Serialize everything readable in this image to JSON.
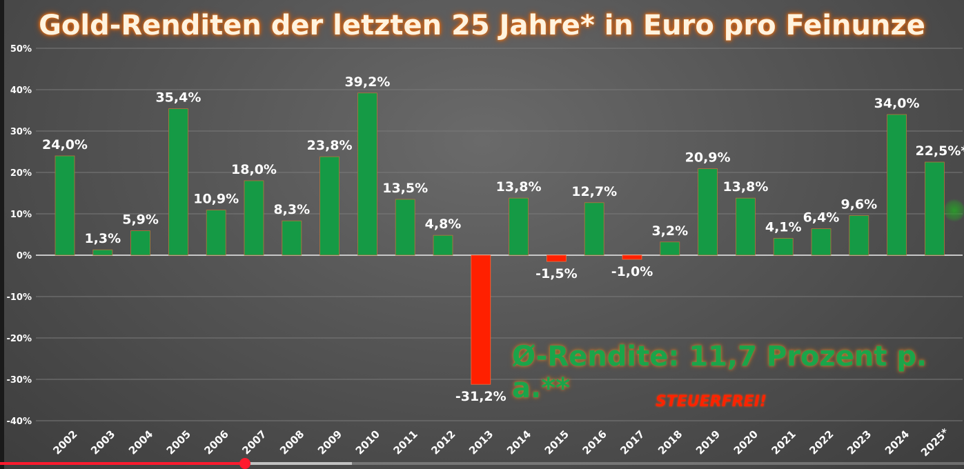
{
  "title": "Gold-Renditen der letzten 25 Jahre* in Euro pro Feinunze",
  "average_note": "Ø-Rendite: 11,7 Prozent p. a.**",
  "tax_note": "STEUERFREI!",
  "colors": {
    "positive_bar": "#159a45",
    "negative_bar": "#ff2000",
    "title_glow": "#e0701a",
    "average_text": "#1aa54a",
    "tax_text": "#ff2200",
    "progress": "#ff1a2e"
  },
  "video_progress": {
    "played_fraction": 0.254,
    "buffered_fraction": 0.365
  },
  "chart_data": {
    "type": "bar",
    "title": "Gold-Renditen der letzten 25 Jahre* in Euro pro Feinunze",
    "xlabel": "",
    "ylabel": "",
    "ylim": [
      -40,
      50
    ],
    "yticks": [
      50,
      40,
      30,
      20,
      10,
      0,
      -10,
      -20,
      -30,
      -40
    ],
    "ytick_labels": [
      "50%",
      "40%",
      "30%",
      "20%",
      "10%",
      "0%",
      "-10%",
      "-20%",
      "-30%",
      "-40%"
    ],
    "grid": true,
    "categories": [
      "2002",
      "2003",
      "2004",
      "2005",
      "2006",
      "2007",
      "2008",
      "2009",
      "2010",
      "2011",
      "2012",
      "2013",
      "2014",
      "2015",
      "2016",
      "2017",
      "2018",
      "2019",
      "2020",
      "2021",
      "2022",
      "2023",
      "2024",
      "2025*"
    ],
    "values": [
      24.0,
      1.3,
      5.9,
      35.4,
      10.9,
      18.0,
      8.3,
      23.8,
      39.2,
      13.5,
      4.8,
      -31.2,
      13.8,
      -1.5,
      12.7,
      -1.0,
      3.2,
      20.9,
      13.8,
      4.1,
      6.4,
      9.6,
      34.0,
      22.5
    ],
    "value_labels": [
      "24,0%",
      "1,3%",
      "5,9%",
      "35,4%",
      "10,9%",
      "18,0%",
      "8,3%",
      "23,8%",
      "39,2%",
      "13,5%",
      "4,8%",
      "-31,2%",
      "13,8%",
      "-1,5%",
      "12,7%",
      "-1,0%",
      "3,2%",
      "20,9%",
      "13,8%",
      "4,1%",
      "6,4%",
      "9,6%",
      "34,0%",
      "22,5%*"
    ]
  }
}
